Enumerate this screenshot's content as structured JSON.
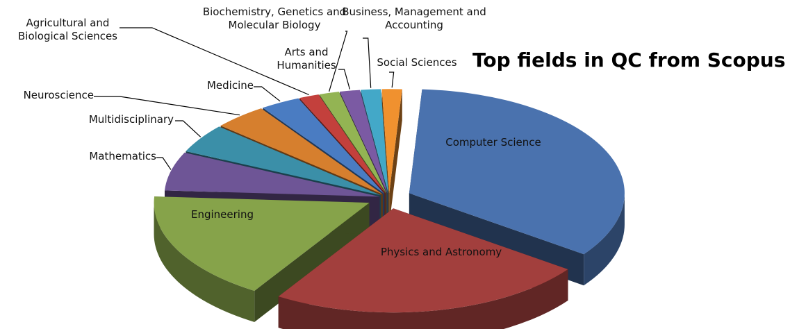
{
  "chart_data": {
    "type": "pie",
    "title": "Top fields in QC from Scopus",
    "categories": [
      "Computer Science",
      "Physics and Astronomy",
      "Engineering",
      "Mathematics",
      "Multidisciplinary",
      "Neuroscience",
      "Medicine",
      "Agricultural and Biological Sciences",
      "Biochemistry, Genetics and Molecular Biology",
      "Arts and Humanities",
      "Business, Management and Accounting",
      "Social Sciences"
    ],
    "values": [
      34,
      24,
      17,
      6,
      4.5,
      4,
      3,
      1.5,
      1.5,
      1.5,
      1.5,
      1.5
    ],
    "colors": [
      "#4a72ae",
      "#a23f3d",
      "#86a34a",
      "#6e5596",
      "#3b8fa8",
      "#d67f2e",
      "#4a7cc2",
      "#c3403c",
      "#93b453",
      "#7b5aa3",
      "#43a8c8",
      "#f0912f"
    ]
  }
}
